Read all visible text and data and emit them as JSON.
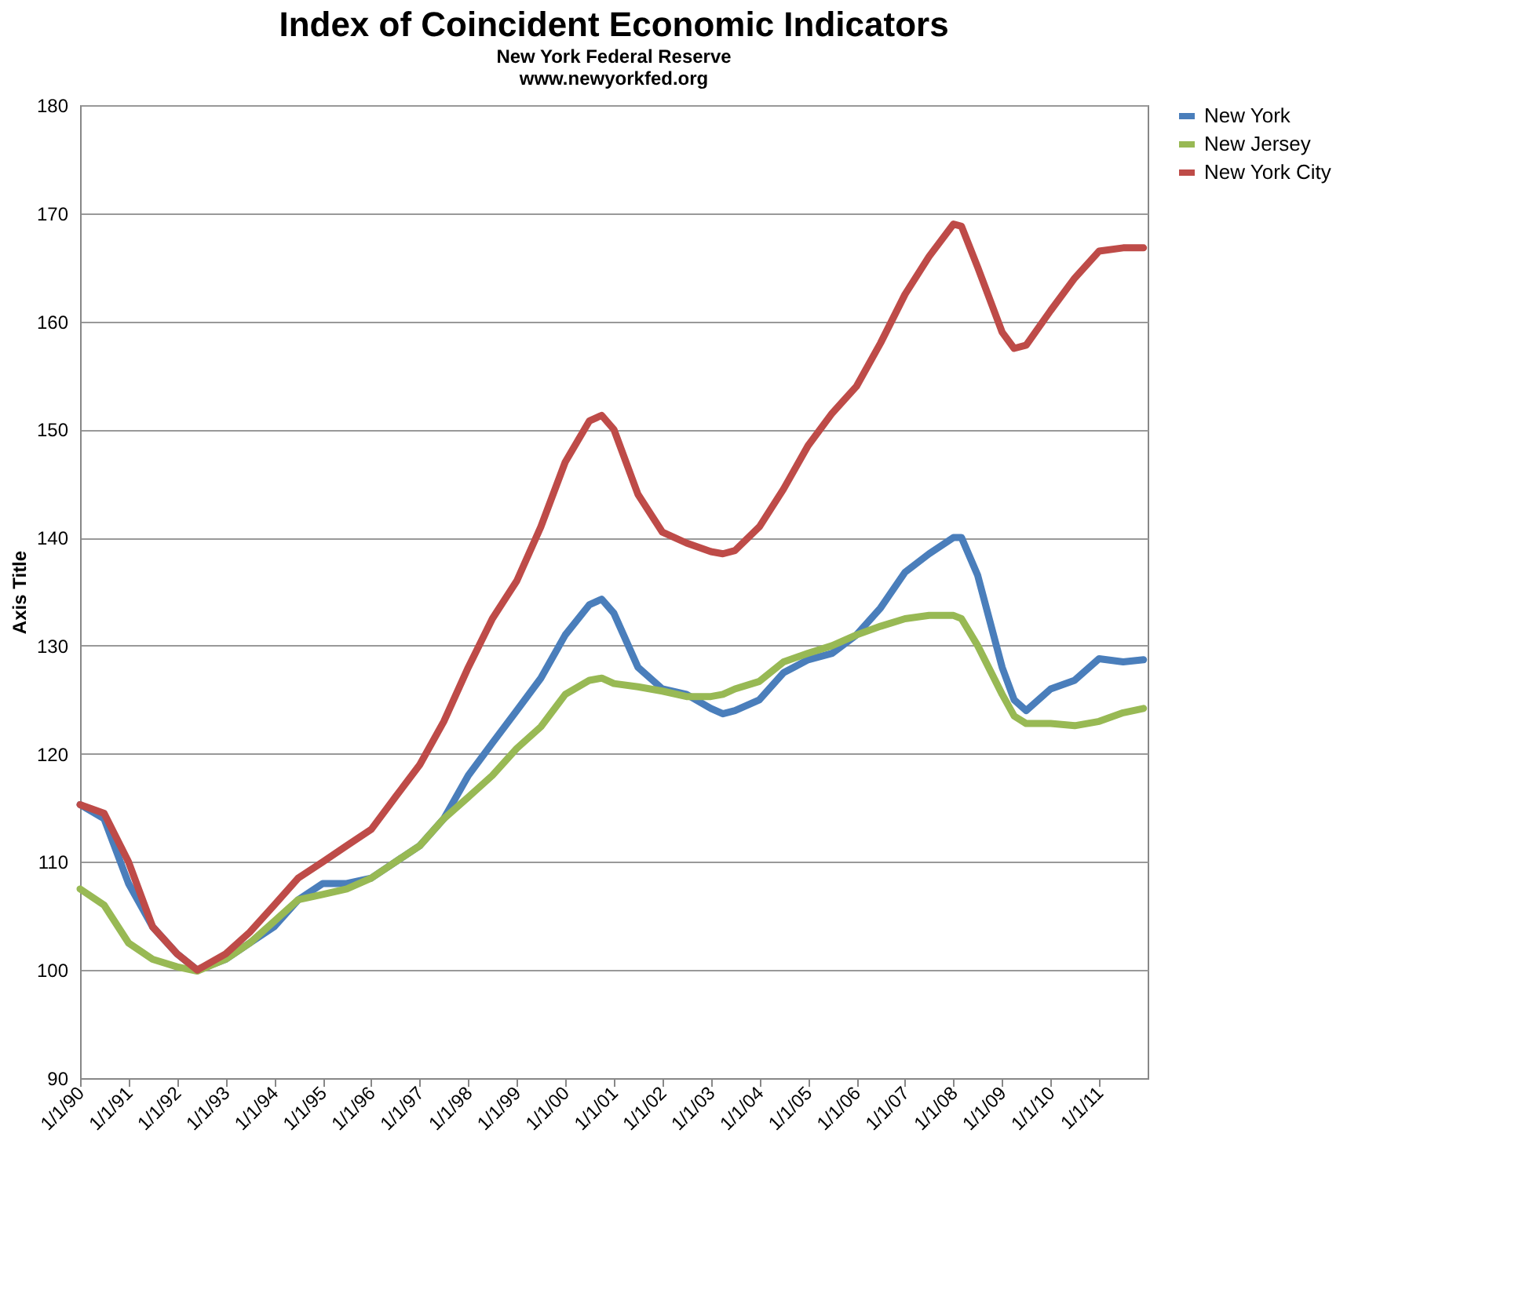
{
  "chart_data": {
    "type": "line",
    "title": "Index of Coincident Economic Indicators",
    "subtitle": "New York Federal Reserve\nwww.newyorkfed.org",
    "ylabel": "Axis Title",
    "x": [
      "1990-01",
      "1990-07",
      "1991-01",
      "1991-07",
      "1992-01",
      "1992-06",
      "1993-01",
      "1993-07",
      "1994-01",
      "1994-07",
      "1995-01",
      "1995-07",
      "1996-01",
      "1996-07",
      "1997-01",
      "1997-07",
      "1998-01",
      "1998-07",
      "1999-01",
      "1999-07",
      "2000-01",
      "2000-07",
      "2000-10",
      "2001-01",
      "2001-07",
      "2002-01",
      "2002-07",
      "2003-01",
      "2003-04",
      "2003-07",
      "2004-01",
      "2004-07",
      "2005-01",
      "2005-07",
      "2006-01",
      "2006-07",
      "2007-01",
      "2007-07",
      "2008-01",
      "2008-03",
      "2008-07",
      "2009-01",
      "2009-04",
      "2009-07",
      "2010-01",
      "2010-07",
      "2011-01",
      "2011-07",
      "2011-12"
    ],
    "series": [
      {
        "name": "New York",
        "color": "#4a7ebb",
        "values": [
          115.3,
          114,
          108,
          104,
          101.5,
          100,
          101,
          102.5,
          104,
          106.5,
          108,
          108,
          108.5,
          110,
          111.5,
          114,
          118,
          121,
          124,
          127,
          131,
          133.8,
          134.3,
          133,
          128,
          126,
          125.5,
          124.2,
          123.7,
          124,
          125,
          127.5,
          128.7,
          129.3,
          131,
          133.5,
          136.8,
          138.5,
          140,
          140,
          136.5,
          128,
          125,
          124,
          126,
          126.8,
          128.8,
          128.5,
          128.7
        ]
      },
      {
        "name": "New Jersey",
        "color": "#98b954",
        "values": [
          107.5,
          106,
          102.5,
          101,
          100.3,
          99.9,
          101,
          102.5,
          104.5,
          106.5,
          107,
          107.5,
          108.5,
          110,
          111.5,
          114,
          116,
          118,
          120.5,
          122.5,
          125.5,
          126.8,
          127,
          126.5,
          126.2,
          125.8,
          125.3,
          125.3,
          125.5,
          126,
          126.7,
          128.5,
          129.3,
          130,
          131,
          131.8,
          132.5,
          132.8,
          132.8,
          132.5,
          130,
          125.5,
          123.5,
          122.8,
          122.8,
          122.6,
          123,
          123.8,
          124.2
        ]
      },
      {
        "name": "New York City",
        "color": "#be4b48",
        "values": [
          115.3,
          114.5,
          110,
          104,
          101.5,
          100,
          101.5,
          103.5,
          106,
          108.5,
          110,
          111.5,
          113,
          116,
          119,
          123,
          128,
          132.5,
          136,
          141,
          147,
          150.8,
          151.3,
          150,
          144,
          140.5,
          139.5,
          138.7,
          138.5,
          138.8,
          141,
          144.5,
          148.5,
          151.5,
          154,
          158,
          162.5,
          166,
          169,
          168.8,
          165,
          159,
          157.5,
          157.8,
          161,
          164,
          166.5,
          166.8,
          166.8
        ]
      }
    ],
    "xlim": [
      "1990-01-01",
      "2012-01-01"
    ],
    "xticks": [
      {
        "value": "1990-01-01",
        "label": "1/1/90"
      },
      {
        "value": "1991-01-01",
        "label": "1/1/91"
      },
      {
        "value": "1992-01-01",
        "label": "1/1/92"
      },
      {
        "value": "1993-01-01",
        "label": "1/1/93"
      },
      {
        "value": "1994-01-01",
        "label": "1/1/94"
      },
      {
        "value": "1995-01-01",
        "label": "1/1/95"
      },
      {
        "value": "1996-01-01",
        "label": "1/1/96"
      },
      {
        "value": "1997-01-01",
        "label": "1/1/97"
      },
      {
        "value": "1998-01-01",
        "label": "1/1/98"
      },
      {
        "value": "1999-01-01",
        "label": "1/1/99"
      },
      {
        "value": "2000-01-01",
        "label": "1/1/00"
      },
      {
        "value": "2001-01-01",
        "label": "1/1/01"
      },
      {
        "value": "2002-01-01",
        "label": "1/1/02"
      },
      {
        "value": "2003-01-01",
        "label": "1/1/03"
      },
      {
        "value": "2004-01-01",
        "label": "1/1/04"
      },
      {
        "value": "2005-01-01",
        "label": "1/1/05"
      },
      {
        "value": "2006-01-01",
        "label": "1/1/06"
      },
      {
        "value": "2007-01-01",
        "label": "1/1/07"
      },
      {
        "value": "2008-01-01",
        "label": "1/1/08"
      },
      {
        "value": "2009-01-01",
        "label": "1/1/09"
      },
      {
        "value": "2010-01-01",
        "label": "1/1/10"
      },
      {
        "value": "2011-01-01",
        "label": "1/1/11"
      }
    ],
    "ylim": [
      90,
      180
    ],
    "yticks": [
      90,
      100,
      110,
      120,
      130,
      140,
      150,
      160,
      170,
      180
    ],
    "grid": "y",
    "legend": "right",
    "marker": "none",
    "line_style": "solid"
  }
}
